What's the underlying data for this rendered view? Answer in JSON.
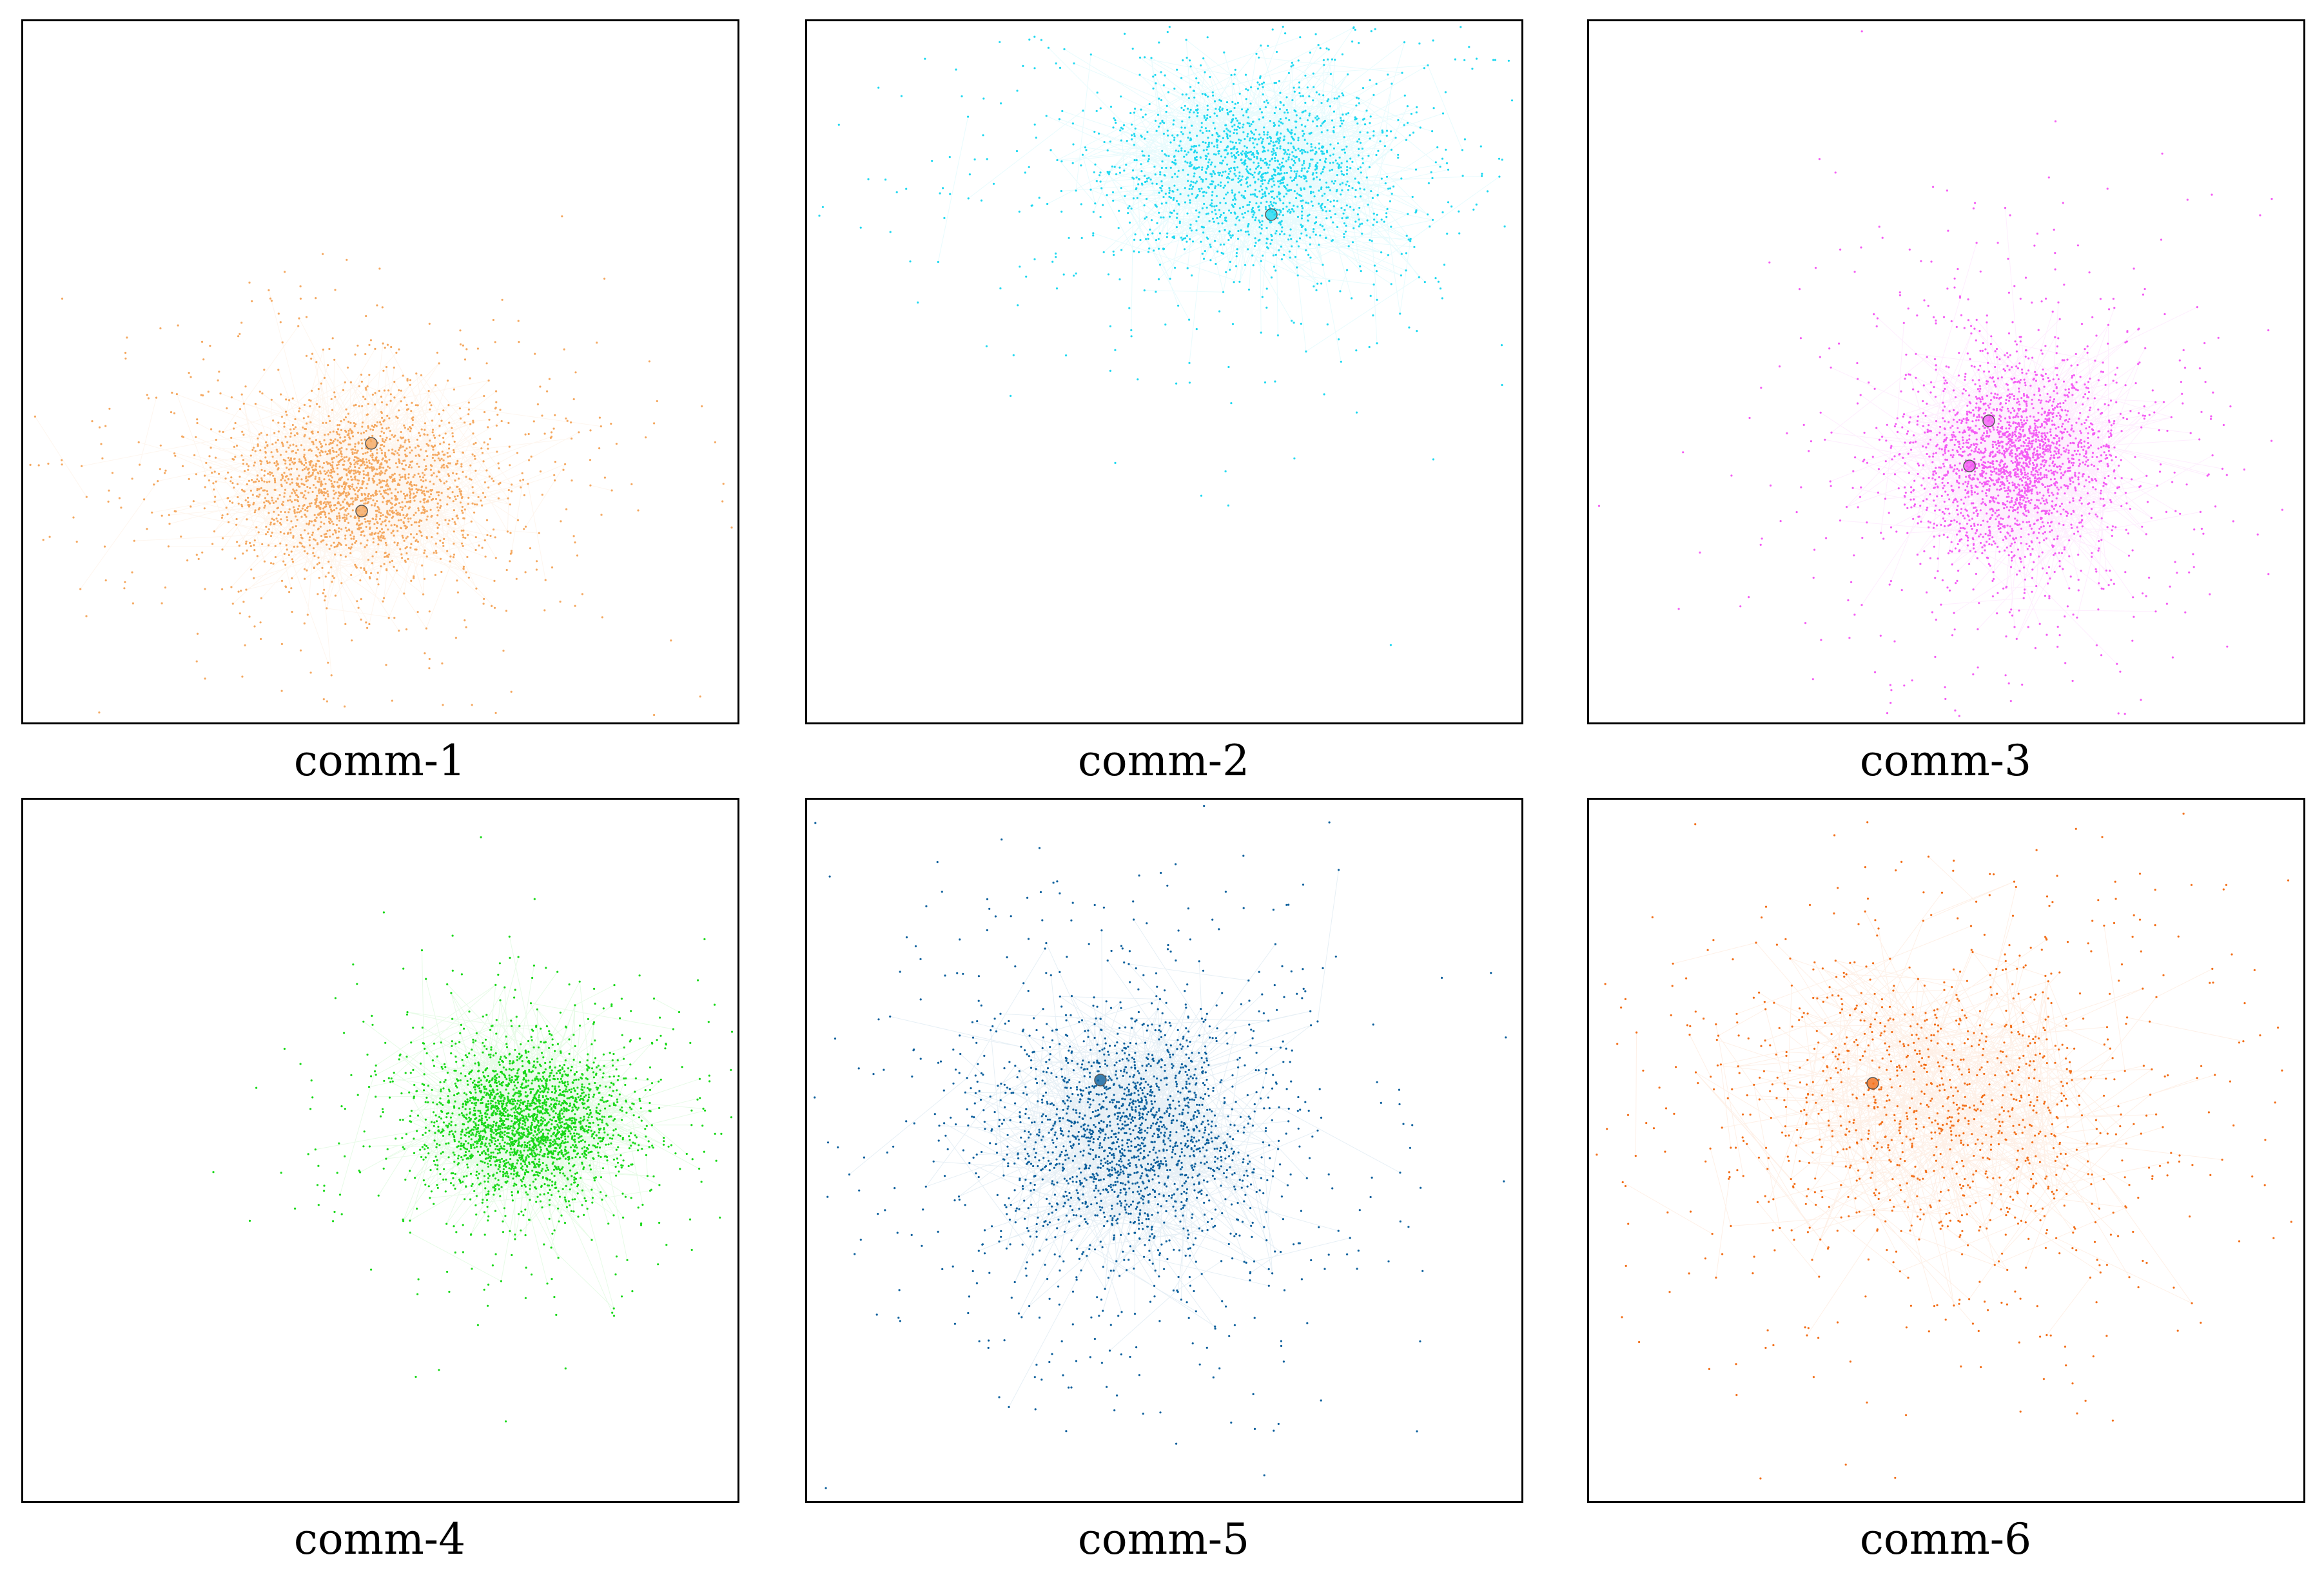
{
  "panels": [
    {
      "label": "comm-1",
      "color": "#f4a860"
    },
    {
      "label": "comm-2",
      "color": "#1ed8f0"
    },
    {
      "label": "comm-3",
      "color": "#f45cf4"
    },
    {
      "label": "comm-4",
      "color": "#18d818"
    },
    {
      "label": "comm-5",
      "color": "#0b5f9c"
    },
    {
      "label": "comm-6",
      "color": "#f26e18"
    }
  ]
}
